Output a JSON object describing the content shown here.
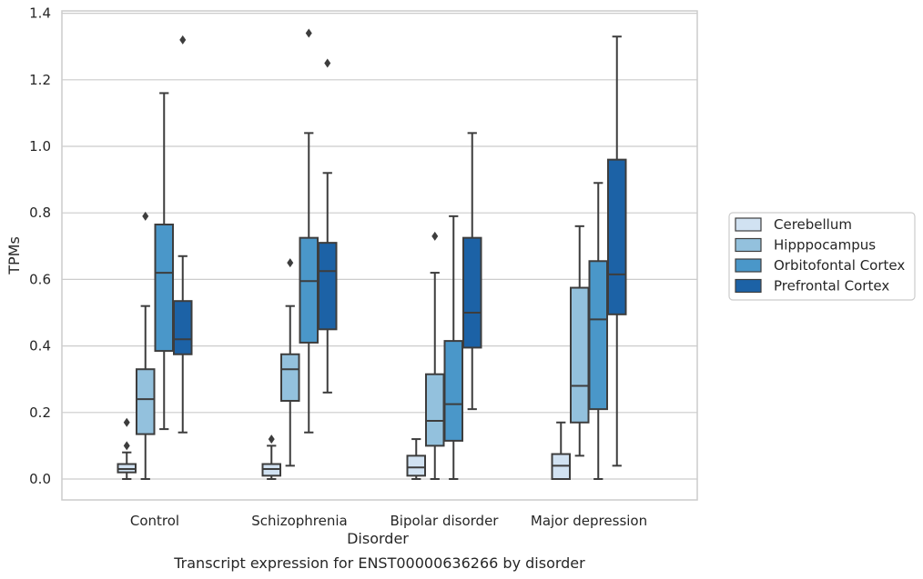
{
  "caption": "Transcript expression for ENST00000636266 by disorder",
  "chart_data": {
    "type": "box",
    "xlabel": "Disorder",
    "ylabel": "TPMs",
    "ylim": [
      -0.06,
      1.41
    ],
    "yticks": [
      "0.0",
      "0.2",
      "0.4",
      "0.6",
      "0.8",
      "1.0",
      "1.2",
      "1.4"
    ],
    "ytick_values": [
      0.0,
      0.2,
      0.4,
      0.6,
      0.8,
      1.0,
      1.2,
      1.4
    ],
    "grid": "horizontal",
    "legend_position": "right",
    "categories": [
      "Control",
      "Schizophrenia",
      "Bipolar disorder",
      "Major depression"
    ],
    "series": [
      {
        "name": "Cerebellum",
        "color": "#d1e2f2",
        "boxes": [
          {
            "whislo": 0.0,
            "q1": 0.02,
            "med": 0.03,
            "q3": 0.045,
            "whishi": 0.08,
            "fliers": [
              0.1,
              0.17
            ]
          },
          {
            "whislo": 0.0,
            "q1": 0.01,
            "med": 0.03,
            "q3": 0.045,
            "whishi": 0.1,
            "fliers": [
              0.12
            ]
          },
          {
            "whislo": 0.0,
            "q1": 0.01,
            "med": 0.035,
            "q3": 0.07,
            "whishi": 0.12,
            "fliers": []
          },
          {
            "whislo": 0.0,
            "q1": 0.0,
            "med": 0.04,
            "q3": 0.075,
            "whishi": 0.17,
            "fliers": []
          }
        ]
      },
      {
        "name": "Hipppocampus",
        "color": "#93c1dd",
        "boxes": [
          {
            "whislo": 0.0,
            "q1": 0.135,
            "med": 0.24,
            "q3": 0.33,
            "whishi": 0.52,
            "fliers": [
              0.79
            ]
          },
          {
            "whislo": 0.04,
            "q1": 0.235,
            "med": 0.33,
            "q3": 0.375,
            "whishi": 0.52,
            "fliers": [
              0.65
            ]
          },
          {
            "whislo": 0.0,
            "q1": 0.1,
            "med": 0.175,
            "q3": 0.315,
            "whishi": 0.62,
            "fliers": [
              0.73
            ]
          },
          {
            "whislo": 0.07,
            "q1": 0.17,
            "med": 0.28,
            "q3": 0.575,
            "whishi": 0.76,
            "fliers": []
          }
        ]
      },
      {
        "name": "Orbitofontal Cortex",
        "color": "#4a97c9",
        "boxes": [
          {
            "whislo": 0.15,
            "q1": 0.385,
            "med": 0.62,
            "q3": 0.765,
            "whishi": 1.16,
            "fliers": []
          },
          {
            "whislo": 0.14,
            "q1": 0.41,
            "med": 0.595,
            "q3": 0.725,
            "whishi": 1.04,
            "fliers": [
              1.34
            ]
          },
          {
            "whislo": 0.0,
            "q1": 0.115,
            "med": 0.225,
            "q3": 0.415,
            "whishi": 0.79,
            "fliers": []
          },
          {
            "whislo": 0.0,
            "q1": 0.21,
            "med": 0.48,
            "q3": 0.655,
            "whishi": 0.89,
            "fliers": []
          }
        ]
      },
      {
        "name": "Prefrontal Cortex",
        "color": "#1c62a6",
        "boxes": [
          {
            "whislo": 0.14,
            "q1": 0.375,
            "med": 0.42,
            "q3": 0.535,
            "whishi": 0.67,
            "fliers": [
              1.32
            ]
          },
          {
            "whislo": 0.26,
            "q1": 0.45,
            "med": 0.625,
            "q3": 0.71,
            "whishi": 0.92,
            "fliers": [
              1.25
            ]
          },
          {
            "whislo": 0.21,
            "q1": 0.395,
            "med": 0.5,
            "q3": 0.725,
            "whishi": 1.04,
            "fliers": []
          },
          {
            "whislo": 0.04,
            "q1": 0.495,
            "med": 0.615,
            "q3": 0.96,
            "whishi": 1.33,
            "fliers": []
          }
        ]
      }
    ]
  }
}
